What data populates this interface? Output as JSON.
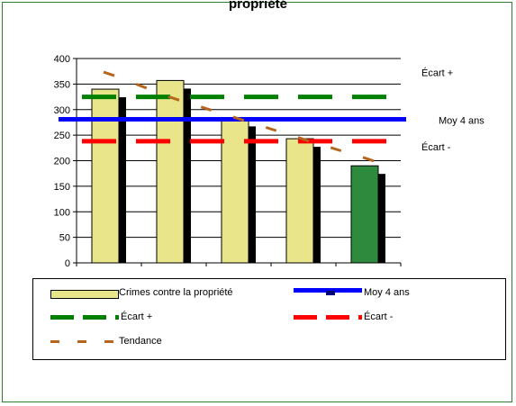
{
  "chart_data": {
    "type": "bar",
    "title": "propriété",
    "categories": [
      "",
      "",
      "",
      "",
      ""
    ],
    "series": [
      {
        "name": "Crimes contre la propriété",
        "values": [
          340,
          357,
          283,
          243,
          190
        ],
        "colors": [
          "#e8e58a",
          "#e8e58a",
          "#e8e58a",
          "#e8e58a",
          "#2e8b3e"
        ]
      },
      {
        "name": "Tendance",
        "values": [
          370,
          322,
          282,
          242,
          203
        ]
      }
    ],
    "reference_lines": [
      {
        "name": "Écart +",
        "value": 325,
        "color": "#008000",
        "style": "dashed",
        "label": "Écart +"
      },
      {
        "name": "Moy 4 ans",
        "value": 281,
        "color": "#0000ff",
        "style": "solid",
        "label": "Moy 4 ans"
      },
      {
        "name": "Écart -",
        "value": 238,
        "color": "#ff0000",
        "style": "dashed",
        "label": "Écart -"
      }
    ],
    "ylim": [
      0,
      400
    ],
    "yticks": [
      "0",
      "50",
      "100",
      "150",
      "200",
      "250",
      "300",
      "350",
      "400"
    ],
    "grid": true,
    "legend_position": "bottom",
    "xlabel": "",
    "ylabel": ""
  },
  "colors": {
    "bar_fill": "#e8e58a",
    "bar_last": "#2e8b3e",
    "shadow": "#000000",
    "trend": "#b5651d",
    "frame": "#2e7d32"
  },
  "legend": {
    "items": [
      {
        "label": "Crimes contre la propriété",
        "kind": "bar"
      },
      {
        "label": "Moy 4 ans",
        "kind": "solid-blue"
      },
      {
        "label": "Écart +",
        "kind": "dash-green"
      },
      {
        "label": "Écart -",
        "kind": "dash-red"
      },
      {
        "label": "Tendance",
        "kind": "dash-brown"
      }
    ]
  }
}
